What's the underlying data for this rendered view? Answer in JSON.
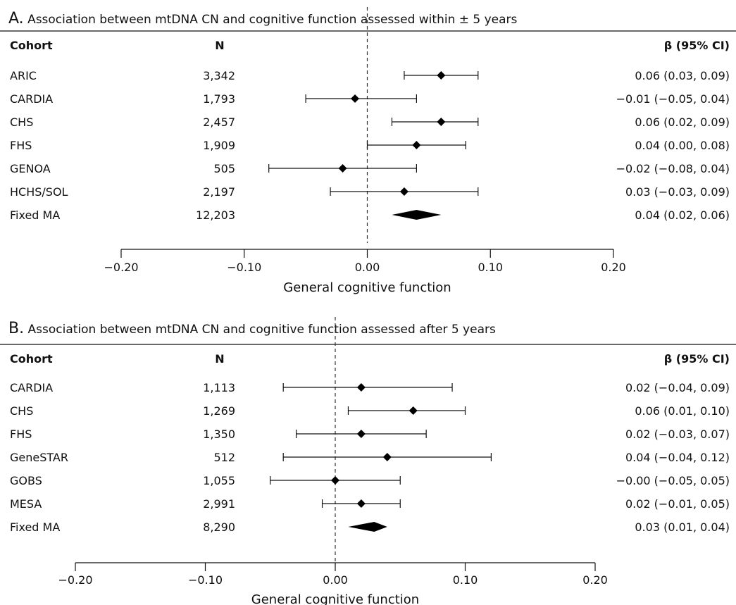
{
  "panels": [
    {
      "letter": "A.",
      "title": "Association between mtDNA CN and cognitive function assessed within ± 5 years",
      "headers": {
        "cohort": "Cohort",
        "n": "N",
        "beta": "β (95% CI)"
      },
      "xlabel": "General cognitive function"
    },
    {
      "letter": "B.",
      "title": "Association between mtDNA CN and cognitive function assessed after 5 years",
      "headers": {
        "cohort": "Cohort",
        "n": "N",
        "beta": "β (95% CI)"
      },
      "xlabel": "General cognitive function"
    }
  ],
  "chart_data": [
    {
      "type": "forest",
      "title": "Association between mtDNA CN and cognitive function assessed within ± 5 years",
      "xlabel": "General cognitive function",
      "xlim": [
        -0.2,
        0.2
      ],
      "ticks": [
        -0.2,
        -0.1,
        0.0,
        0.1,
        0.2
      ],
      "tick_labels": [
        "−0.20",
        "−0.10",
        "0.00",
        "0.10",
        "0.20"
      ],
      "reference_line": 0,
      "rows": [
        {
          "cohort": "ARIC",
          "n": "3,342",
          "estimate": 0.06,
          "lower": 0.03,
          "upper": 0.09,
          "label": "0.06 (0.03, 0.09)"
        },
        {
          "cohort": "CARDIA",
          "n": "1,793",
          "estimate": -0.01,
          "lower": -0.05,
          "upper": 0.04,
          "label": "−0.01 (−0.05, 0.04)"
        },
        {
          "cohort": "CHS",
          "n": "2,457",
          "estimate": 0.06,
          "lower": 0.02,
          "upper": 0.09,
          "label": "0.06 (0.02, 0.09)"
        },
        {
          "cohort": "FHS",
          "n": "1,909",
          "estimate": 0.04,
          "lower": 0.0,
          "upper": 0.08,
          "label": "0.04 (0.00, 0.08)"
        },
        {
          "cohort": "GENOA",
          "n": "505",
          "estimate": -0.02,
          "lower": -0.08,
          "upper": 0.04,
          "label": "−0.02 (−0.08, 0.04)"
        },
        {
          "cohort": "HCHS/SOL",
          "n": "2,197",
          "estimate": 0.03,
          "lower": -0.03,
          "upper": 0.09,
          "label": "0.03 (−0.03, 0.09)"
        },
        {
          "cohort": "Fixed MA",
          "n": "12,203",
          "estimate": 0.04,
          "lower": 0.02,
          "upper": 0.06,
          "label": "0.04 (0.02, 0.06)",
          "summary": true
        }
      ]
    },
    {
      "type": "forest",
      "title": "Association between mtDNA CN and cognitive function assessed after 5 years",
      "xlabel": "General cognitive function",
      "xlim": [
        -0.2,
        0.2
      ],
      "ticks": [
        -0.2,
        -0.1,
        0.0,
        0.1,
        0.2
      ],
      "tick_labels": [
        "−0.20",
        "−0.10",
        "0.00",
        "0.10",
        "0.20"
      ],
      "reference_line": 0,
      "rows": [
        {
          "cohort": "CARDIA",
          "n": "1,113",
          "estimate": 0.02,
          "lower": -0.04,
          "upper": 0.09,
          "label": "0.02 (−0.04, 0.09)"
        },
        {
          "cohort": "CHS",
          "n": "1,269",
          "estimate": 0.06,
          "lower": 0.01,
          "upper": 0.1,
          "label": "0.06 (0.01, 0.10)"
        },
        {
          "cohort": "FHS",
          "n": "1,350",
          "estimate": 0.02,
          "lower": -0.03,
          "upper": 0.07,
          "label": "0.02 (−0.03, 0.07)"
        },
        {
          "cohort": "GeneSTAR",
          "n": "512",
          "estimate": 0.04,
          "lower": -0.04,
          "upper": 0.12,
          "label": "0.04 (−0.04, 0.12)"
        },
        {
          "cohort": "GOBS",
          "n": "1,055",
          "estimate": 0.0,
          "lower": -0.05,
          "upper": 0.05,
          "label": "−0.00 (−0.05, 0.05)"
        },
        {
          "cohort": "MESA",
          "n": "2,991",
          "estimate": 0.02,
          "lower": -0.01,
          "upper": 0.05,
          "label": "0.02 (−0.01, 0.05)"
        },
        {
          "cohort": "Fixed MA",
          "n": "8,290",
          "estimate": 0.03,
          "lower": 0.01,
          "upper": 0.04,
          "label": "0.03 (0.01, 0.04)",
          "summary": true
        }
      ]
    }
  ]
}
